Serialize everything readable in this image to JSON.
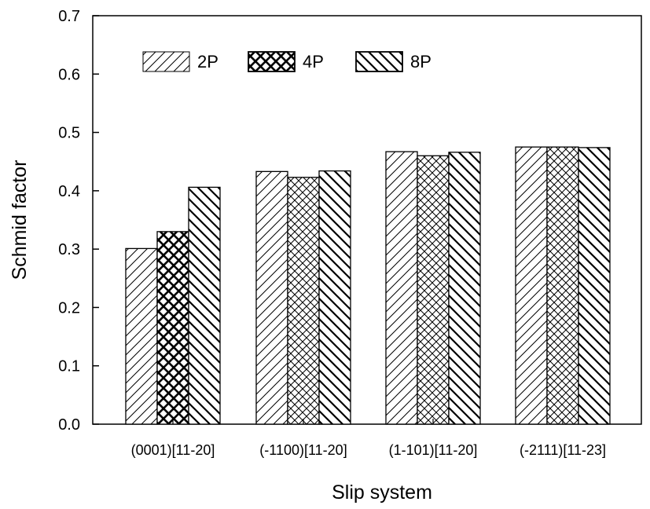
{
  "chart_data": {
    "type": "bar",
    "title": "",
    "xlabel": "Slip system",
    "ylabel": "Schmid factor",
    "ylim": [
      0,
      0.7
    ],
    "yticks": [
      "0.0",
      "0.1",
      "0.2",
      "0.3",
      "0.4",
      "0.5",
      "0.6",
      "0.7"
    ],
    "categories": [
      "(0001)[11-20]",
      "(-1100)[11-20]",
      "(1-101)[11-20]",
      "(-2111)[11-23]"
    ],
    "series": [
      {
        "name": "2P",
        "values": [
          0.301,
          0.433,
          0.467,
          0.475
        ],
        "pattern": "diag-light"
      },
      {
        "name": "4P",
        "values": [
          0.33,
          0.423,
          0.46,
          0.475
        ],
        "pattern": "cross"
      },
      {
        "name": "8P",
        "values": [
          0.406,
          0.434,
          0.466,
          0.474
        ],
        "pattern": "diag-back"
      }
    ],
    "legend_position": "top-left",
    "grid": false,
    "colors": {
      "bar_fill": "#ffffff",
      "stroke": "#000000"
    }
  }
}
